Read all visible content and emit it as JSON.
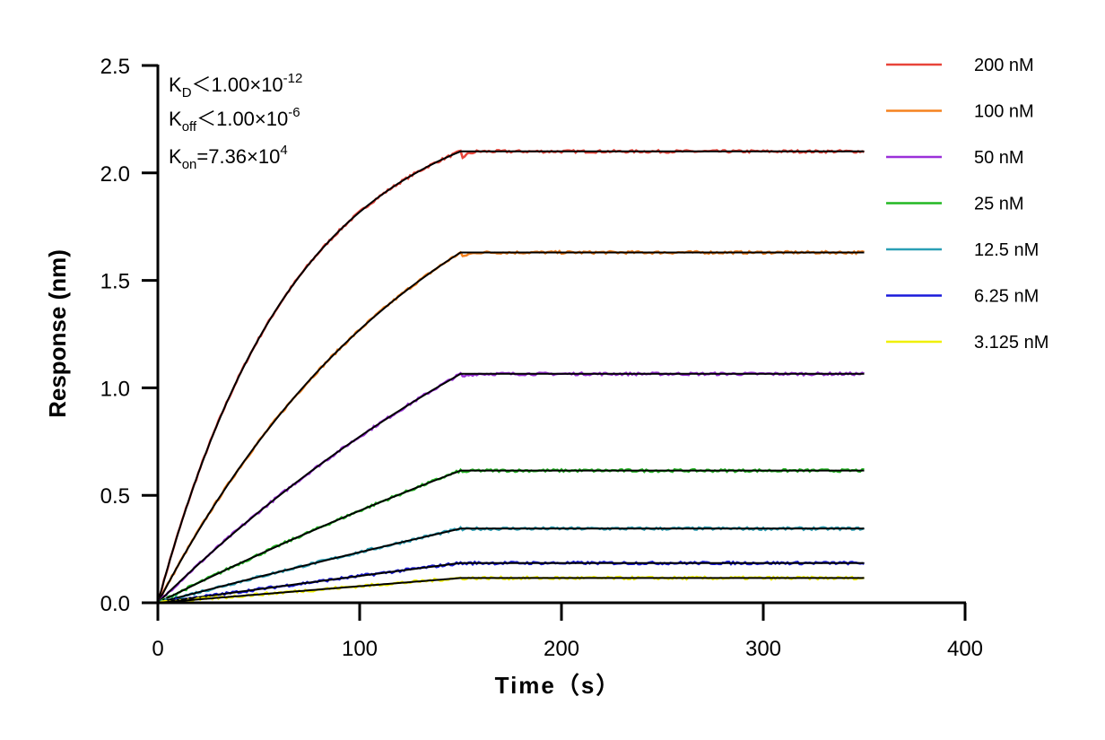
{
  "chart_data": {
    "type": "line",
    "xlabel": "Time（s）",
    "ylabel": "Response (nm)",
    "xlim": [
      0,
      400
    ],
    "ylim": [
      0,
      2.5
    ],
    "xticks": [
      "0",
      "100",
      "200",
      "300",
      "400"
    ],
    "yticks": [
      "0.0",
      "0.5",
      "1.0",
      "1.5",
      "2.0",
      "2.5"
    ],
    "grid": false,
    "legend_position": "right",
    "annotations": {
      "kd": {
        "main": "K",
        "sub": "D",
        "rest": "＜1.00×10",
        "sup": "-12"
      },
      "koff": {
        "main": "K",
        "sub": "off",
        "rest": "＜1.00×10",
        "sup": "-6"
      },
      "kon": {
        "main": "K",
        "sub": "on",
        "rest": "=7.36×10",
        "sup": "4"
      }
    },
    "model": {
      "kon_per_M_s": 73600,
      "association_end_s": 150,
      "end_s": 350,
      "fit_color": "#000000"
    },
    "series": [
      {
        "name": "200 nM",
        "conc_nM": 200,
        "plateau": 2.1,
        "color": "#e8443a"
      },
      {
        "name": "100 nM",
        "conc_nM": 100,
        "plateau": 1.63,
        "color": "#f5821f"
      },
      {
        "name": "50 nM",
        "conc_nM": 50,
        "plateau": 1.065,
        "color": "#9b30d9"
      },
      {
        "name": "25 nM",
        "conc_nM": 25,
        "plateau": 0.615,
        "color": "#22b822"
      },
      {
        "name": "12.5 nM",
        "conc_nM": 12.5,
        "plateau": 0.345,
        "color": "#2a9fb5"
      },
      {
        "name": "6.25 nM",
        "conc_nM": 6.25,
        "plateau": 0.185,
        "color": "#1a1adb"
      },
      {
        "name": "3.125 nM",
        "conc_nM": 3.125,
        "plateau": 0.115,
        "color": "#f0f000"
      }
    ]
  }
}
